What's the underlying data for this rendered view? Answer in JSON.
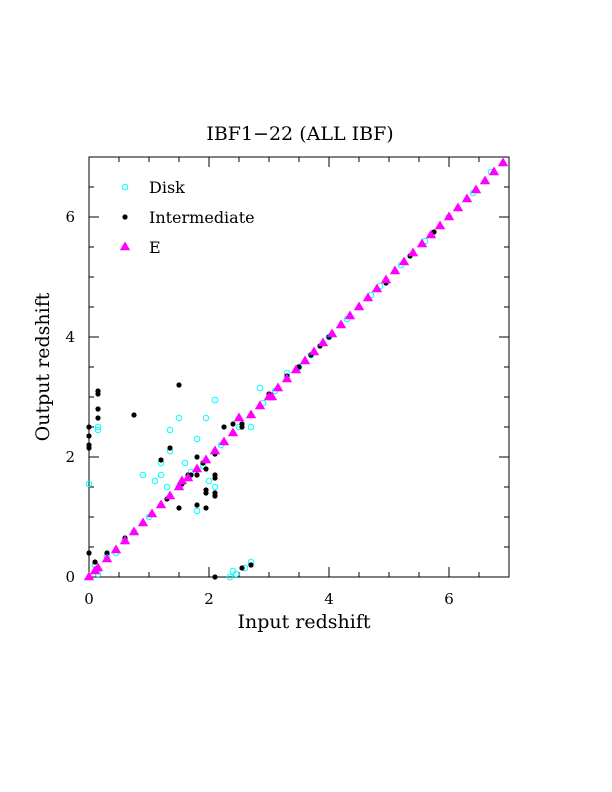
{
  "chart_data": {
    "type": "scatter",
    "title": "IBF1−22 (ALL IBF)",
    "xlabel": "Input redshift",
    "ylabel": "Output redshift",
    "xlim": [
      0,
      7
    ],
    "ylim": [
      0,
      7
    ],
    "xticks": [
      0,
      2,
      4,
      6
    ],
    "yticks": [
      0,
      2,
      4,
      6
    ],
    "legend_position": "top-left",
    "series": [
      {
        "name": "Disk",
        "marker": "open-circle",
        "color": "#00ffff",
        "points": [
          [
            0.0,
            1.55
          ],
          [
            0.1,
            0.2
          ],
          [
            0.15,
            2.45
          ],
          [
            0.15,
            2.5
          ],
          [
            0.15,
            0.05
          ],
          [
            0.3,
            0.35
          ],
          [
            0.45,
            0.4
          ],
          [
            0.6,
            0.6
          ],
          [
            0.75,
            0.75
          ],
          [
            0.9,
            1.7
          ],
          [
            1.0,
            1.0
          ],
          [
            1.1,
            1.6
          ],
          [
            1.2,
            1.7
          ],
          [
            1.2,
            1.9
          ],
          [
            1.3,
            1.5
          ],
          [
            1.35,
            2.45
          ],
          [
            1.35,
            2.1
          ],
          [
            1.5,
            2.65
          ],
          [
            1.5,
            1.5
          ],
          [
            1.6,
            1.9
          ],
          [
            1.7,
            1.75
          ],
          [
            1.8,
            2.3
          ],
          [
            1.8,
            1.1
          ],
          [
            1.9,
            1.85
          ],
          [
            1.95,
            2.65
          ],
          [
            2.0,
            1.6
          ],
          [
            2.1,
            2.95
          ],
          [
            2.1,
            1.5
          ],
          [
            2.2,
            2.2
          ],
          [
            2.35,
            0.0
          ],
          [
            2.4,
            0.1
          ],
          [
            2.45,
            0.05
          ],
          [
            2.5,
            2.5
          ],
          [
            2.6,
            0.15
          ],
          [
            2.7,
            2.5
          ],
          [
            2.7,
            0.25
          ],
          [
            2.85,
            3.15
          ],
          [
            2.9,
            2.9
          ],
          [
            3.1,
            3.1
          ],
          [
            3.3,
            3.4
          ],
          [
            3.5,
            3.5
          ],
          [
            3.7,
            3.7
          ],
          [
            4.0,
            4.0
          ],
          [
            4.3,
            4.3
          ],
          [
            4.7,
            4.7
          ],
          [
            4.85,
            4.85
          ],
          [
            5.2,
            5.2
          ],
          [
            5.6,
            5.6
          ],
          [
            6.0,
            6.0
          ],
          [
            6.4,
            6.4
          ],
          [
            6.7,
            6.75
          ]
        ]
      },
      {
        "name": "Intermediate",
        "marker": "filled-circle",
        "color": "#000000",
        "points": [
          [
            0.0,
            2.5
          ],
          [
            0.0,
            2.35
          ],
          [
            0.0,
            2.15
          ],
          [
            0.0,
            2.2
          ],
          [
            0.0,
            0.4
          ],
          [
            0.15,
            3.05
          ],
          [
            0.15,
            3.1
          ],
          [
            0.15,
            2.8
          ],
          [
            0.15,
            2.65
          ],
          [
            0.1,
            0.25
          ],
          [
            0.3,
            0.4
          ],
          [
            0.45,
            0.45
          ],
          [
            0.6,
            0.65
          ],
          [
            0.75,
            2.7
          ],
          [
            0.75,
            0.75
          ],
          [
            0.9,
            0.9
          ],
          [
            1.05,
            1.05
          ],
          [
            1.2,
            1.95
          ],
          [
            1.3,
            1.3
          ],
          [
            1.35,
            2.15
          ],
          [
            1.5,
            3.2
          ],
          [
            1.5,
            1.15
          ],
          [
            1.55,
            1.55
          ],
          [
            1.65,
            1.7
          ],
          [
            1.7,
            1.7
          ],
          [
            1.8,
            1.7
          ],
          [
            1.8,
            2.0
          ],
          [
            1.8,
            1.2
          ],
          [
            1.9,
            1.9
          ],
          [
            1.95,
            1.8
          ],
          [
            1.95,
            1.45
          ],
          [
            1.95,
            1.4
          ],
          [
            1.95,
            1.15
          ],
          [
            2.1,
            1.65
          ],
          [
            2.1,
            1.7
          ],
          [
            2.1,
            2.05
          ],
          [
            2.1,
            1.4
          ],
          [
            2.1,
            1.35
          ],
          [
            2.1,
            0.0
          ],
          [
            2.25,
            2.25
          ],
          [
            2.25,
            2.5
          ],
          [
            2.4,
            2.4
          ],
          [
            2.4,
            2.55
          ],
          [
            2.55,
            2.5
          ],
          [
            2.55,
            2.55
          ],
          [
            2.55,
            0.15
          ],
          [
            2.7,
            2.7
          ],
          [
            2.7,
            0.2
          ],
          [
            2.85,
            2.85
          ],
          [
            3.0,
            3.05
          ],
          [
            3.15,
            3.15
          ],
          [
            3.3,
            3.35
          ],
          [
            3.5,
            3.5
          ],
          [
            3.7,
            3.7
          ],
          [
            3.85,
            3.85
          ],
          [
            4.0,
            4.0
          ],
          [
            4.2,
            4.2
          ],
          [
            4.35,
            4.35
          ],
          [
            4.5,
            4.5
          ],
          [
            4.95,
            4.9
          ],
          [
            5.35,
            5.35
          ],
          [
            5.75,
            5.75
          ],
          [
            6.15,
            6.15
          ]
        ]
      },
      {
        "name": "E",
        "marker": "filled-triangle",
        "color": "#ff00ff",
        "points": [
          [
            0.0,
            0.0
          ],
          [
            0.1,
            0.1
          ],
          [
            0.15,
            0.15
          ],
          [
            0.3,
            0.3
          ],
          [
            0.45,
            0.45
          ],
          [
            0.6,
            0.6
          ],
          [
            0.75,
            0.75
          ],
          [
            0.9,
            0.9
          ],
          [
            1.05,
            1.05
          ],
          [
            1.2,
            1.2
          ],
          [
            1.35,
            1.35
          ],
          [
            1.5,
            1.5
          ],
          [
            1.55,
            1.6
          ],
          [
            1.65,
            1.65
          ],
          [
            1.8,
            1.8
          ],
          [
            1.95,
            1.95
          ],
          [
            2.1,
            2.1
          ],
          [
            2.25,
            2.25
          ],
          [
            2.4,
            2.4
          ],
          [
            2.5,
            2.65
          ],
          [
            2.7,
            2.7
          ],
          [
            2.85,
            2.85
          ],
          [
            3.0,
            3.0
          ],
          [
            3.05,
            3.0
          ],
          [
            3.15,
            3.15
          ],
          [
            3.3,
            3.3
          ],
          [
            3.45,
            3.45
          ],
          [
            3.6,
            3.6
          ],
          [
            3.75,
            3.75
          ],
          [
            3.9,
            3.9
          ],
          [
            4.05,
            4.05
          ],
          [
            4.2,
            4.2
          ],
          [
            4.35,
            4.35
          ],
          [
            4.5,
            4.5
          ],
          [
            4.65,
            4.65
          ],
          [
            4.8,
            4.8
          ],
          [
            4.95,
            4.95
          ],
          [
            5.1,
            5.1
          ],
          [
            5.25,
            5.25
          ],
          [
            5.4,
            5.4
          ],
          [
            5.55,
            5.55
          ],
          [
            5.7,
            5.7
          ],
          [
            5.85,
            5.85
          ],
          [
            6.0,
            6.0
          ],
          [
            6.15,
            6.15
          ],
          [
            6.3,
            6.3
          ],
          [
            6.45,
            6.45
          ],
          [
            6.6,
            6.6
          ],
          [
            6.75,
            6.75
          ],
          [
            6.9,
            6.9
          ]
        ]
      }
    ]
  }
}
